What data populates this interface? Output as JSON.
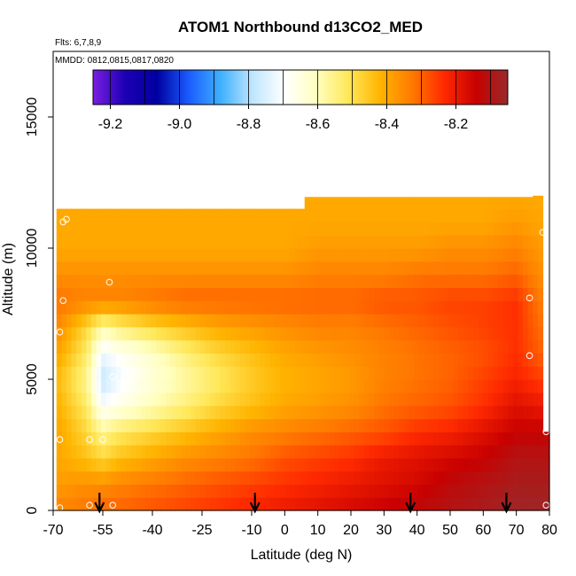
{
  "chart_data": {
    "type": "heatmap",
    "title": "ATOM1 Northbound d13CO2_MED",
    "annotations": [
      "Flts: 6,7,8,9",
      "MMDD: 0812,0815,0817,0820"
    ],
    "xlabel": "Latitude (deg N)",
    "ylabel": "Altitude (m)",
    "xlim": [
      -70,
      80
    ],
    "ylim": [
      0,
      17500
    ],
    "x_ticks": [
      {
        "v": -70,
        "label": "-70"
      },
      {
        "v": -55,
        "label": "-55"
      },
      {
        "v": -40,
        "label": "-40"
      },
      {
        "v": -25,
        "label": "-25"
      },
      {
        "v": -10,
        "label": "-10"
      },
      {
        "v": 0,
        "label": "0"
      },
      {
        "v": 10,
        "label": "10"
      },
      {
        "v": 20,
        "label": "20"
      },
      {
        "v": 30,
        "label": "30"
      },
      {
        "v": 40,
        "label": "40"
      },
      {
        "v": 50,
        "label": "50"
      },
      {
        "v": 60,
        "label": "60"
      },
      {
        "v": 70,
        "label": "70"
      },
      {
        "v": 80,
        "label": "80"
      }
    ],
    "y_ticks": [
      {
        "v": 0,
        "label": "0"
      },
      {
        "v": 5000,
        "label": "5000"
      },
      {
        "v": 10000,
        "label": "10000"
      },
      {
        "v": 15000,
        "label": "15000"
      }
    ],
    "colorbar": {
      "range": [
        -9.25,
        -8.05
      ],
      "ticks": [
        {
          "v": -9.2,
          "label": "-9.2"
        },
        {
          "v": -9.0,
          "label": "-9.0"
        },
        {
          "v": -8.8,
          "label": "-8.8"
        },
        {
          "v": -8.6,
          "label": "-8.6"
        },
        {
          "v": -8.4,
          "label": "-8.4"
        },
        {
          "v": -8.2,
          "label": "-8.2"
        }
      ],
      "colors": [
        "#7a1fe0",
        "#1c00b4",
        "#0000a0",
        "#1a5cff",
        "#3fb0ff",
        "#bfe6ff",
        "#ffffff",
        "#ffffc0",
        "#ffe85a",
        "#ffb400",
        "#ff7a00",
        "#ff2a00",
        "#c80000",
        "#9a2a2a"
      ]
    },
    "field": {
      "lat": [
        -68,
        -60,
        -55,
        -50,
        -40,
        -30,
        -20,
        -10,
        0,
        10,
        20,
        30,
        40,
        50,
        60,
        70,
        78
      ],
      "alt": [
        0,
        1000,
        2000,
        3000,
        4000,
        5000,
        6000,
        7000,
        8000,
        9000,
        10000,
        11000,
        12000
      ],
      "values": [
        [
          -8.34,
          -8.32,
          -8.3,
          -8.3,
          -8.28,
          -8.26,
          -8.24,
          -8.22,
          -8.2,
          -8.18,
          -8.16,
          -8.14,
          -8.12,
          -8.1,
          -8.08,
          -8.06,
          -8.06
        ],
        [
          -8.38,
          -8.36,
          -8.36,
          -8.34,
          -8.32,
          -8.3,
          -8.28,
          -8.26,
          -8.24,
          -8.22,
          -8.2,
          -8.18,
          -8.16,
          -8.12,
          -8.1,
          -8.08,
          -8.08
        ],
        [
          -8.4,
          -8.44,
          -8.48,
          -8.44,
          -8.4,
          -8.36,
          -8.34,
          -8.32,
          -8.28,
          -8.26,
          -8.24,
          -8.2,
          -8.18,
          -8.16,
          -8.14,
          -8.1,
          -8.1
        ],
        [
          -8.4,
          -8.48,
          -8.56,
          -8.52,
          -8.48,
          -8.44,
          -8.4,
          -8.36,
          -8.34,
          -8.32,
          -8.3,
          -8.28,
          -8.24,
          -8.22,
          -8.18,
          -8.14,
          -8.14
        ],
        [
          -8.42,
          -8.52,
          -8.7,
          -8.66,
          -8.6,
          -8.54,
          -8.48,
          -8.44,
          -8.4,
          -8.38,
          -8.36,
          -8.32,
          -8.3,
          -8.28,
          -8.24,
          -8.18,
          -8.2
        ],
        [
          -8.44,
          -8.56,
          -8.78,
          -8.72,
          -8.64,
          -8.58,
          -8.52,
          -8.46,
          -8.42,
          -8.4,
          -8.38,
          -8.34,
          -8.32,
          -8.3,
          -8.26,
          -8.22,
          -8.26
        ],
        [
          -8.4,
          -8.52,
          -8.72,
          -8.68,
          -8.62,
          -8.54,
          -8.48,
          -8.44,
          -8.4,
          -8.38,
          -8.36,
          -8.34,
          -8.32,
          -8.3,
          -8.28,
          -8.24,
          -8.3
        ],
        [
          -8.36,
          -8.48,
          -8.58,
          -8.54,
          -8.48,
          -8.44,
          -8.4,
          -8.38,
          -8.36,
          -8.34,
          -8.34,
          -8.32,
          -8.3,
          -8.28,
          -8.26,
          -8.24,
          -8.32
        ],
        [
          -8.32,
          -8.34,
          -8.34,
          -8.34,
          -8.32,
          -8.3,
          -8.3,
          -8.3,
          -8.3,
          -8.3,
          -8.3,
          -8.28,
          -8.28,
          -8.26,
          -8.26,
          -8.24,
          -8.34
        ],
        [
          -8.36,
          -8.36,
          -8.36,
          -8.36,
          -8.36,
          -8.36,
          -8.36,
          -8.36,
          -8.36,
          -8.34,
          -8.34,
          -8.34,
          -8.32,
          -8.32,
          -8.32,
          -8.3,
          -8.36
        ],
        [
          -8.4,
          -8.4,
          -8.4,
          -8.4,
          -8.4,
          -8.4,
          -8.4,
          -8.4,
          -8.4,
          -8.38,
          -8.38,
          -8.38,
          -8.38,
          -8.36,
          -8.36,
          -8.34,
          -8.38
        ],
        [
          -8.4,
          -8.4,
          -8.4,
          -8.4,
          -8.4,
          -8.4,
          -8.4,
          -8.4,
          -8.4,
          -8.4,
          -8.4,
          -8.4,
          -8.4,
          -8.4,
          -8.4,
          -8.38,
          -8.4
        ],
        [
          -8.4,
          -8.4,
          -8.4,
          -8.4,
          -8.4,
          -8.4,
          -8.4,
          -8.4,
          -8.4,
          -8.4,
          -8.4,
          -8.4,
          -8.4,
          -8.4,
          -8.4,
          -8.4,
          -8.4
        ]
      ]
    },
    "coverage": [
      {
        "lat0": -69,
        "lat1": -57,
        "alt_max": 11500
      },
      {
        "lat0": -57,
        "lat1": 6,
        "alt_max": 11500
      },
      {
        "lat0": 6,
        "lat1": 75,
        "alt_max": 11950
      },
      {
        "lat0": 75,
        "lat1": 78,
        "alt_max": 12000
      },
      {
        "lat0": 78,
        "lat1": 80,
        "alt_max": 3000
      }
    ],
    "samples": [
      {
        "lat": -68,
        "alt": 100
      },
      {
        "lat": -68,
        "alt": 2700
      },
      {
        "lat": -68,
        "alt": 6800
      },
      {
        "lat": -67,
        "alt": 8000
      },
      {
        "lat": -67,
        "alt": 11000
      },
      {
        "lat": -66,
        "alt": 11100
      },
      {
        "lat": -59,
        "alt": 200
      },
      {
        "lat": -59,
        "alt": 2700
      },
      {
        "lat": -55,
        "alt": 2700
      },
      {
        "lat": -52,
        "alt": 200
      },
      {
        "lat": -53,
        "alt": 8700
      },
      {
        "lat": -52,
        "alt": 5100
      },
      {
        "lat": 74,
        "alt": 8100
      },
      {
        "lat": 74,
        "alt": 5900
      },
      {
        "lat": 78,
        "alt": 10600
      },
      {
        "lat": 79,
        "alt": 3000
      },
      {
        "lat": 79,
        "alt": 200
      }
    ],
    "arrows": [
      -56,
      -9,
      38,
      67
    ]
  }
}
